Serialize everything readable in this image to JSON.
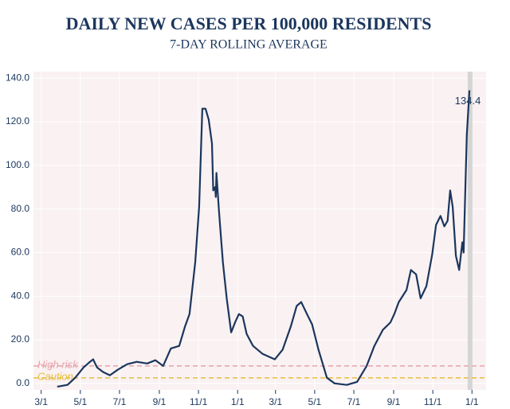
{
  "chart_data": {
    "type": "line",
    "title": "DAILY NEW CASES PER 100,000 RESIDENTS",
    "subtitle": "7-DAY ROLLING AVERAGE",
    "color": "#1b365d",
    "grid": true,
    "x": [
      25,
      41,
      53,
      66,
      76,
      81,
      87,
      97,
      107,
      119,
      134,
      149,
      165,
      178,
      190,
      202,
      215,
      224,
      231,
      240,
      246,
      251,
      256,
      261,
      266,
      268,
      271,
      272,
      273,
      277,
      283,
      289,
      296,
      302,
      308,
      314,
      320,
      330,
      345,
      364,
      376,
      389,
      398,
      405,
      414,
      422,
      432,
      445,
      457,
      476,
      492,
      507,
      519,
      532,
      544,
      550,
      557,
      569,
      576,
      584,
      591,
      600,
      609,
      615,
      622,
      628,
      633,
      637,
      641,
      646,
      651,
      656,
      658,
      663,
      667
    ],
    "values": [
      -1.5,
      -0.7,
      2.6,
      7.3,
      9.9,
      11,
      7.3,
      5.1,
      3.7,
      6.2,
      8.8,
      9.9,
      9.1,
      10.6,
      8,
      16,
      17.2,
      26,
      31.8,
      55.6,
      81,
      126,
      126,
      121,
      110,
      88.5,
      90,
      85.5,
      96.5,
      79,
      55.6,
      39,
      23.4,
      28,
      31.8,
      30.7,
      22.7,
      17.2,
      13.5,
      11,
      15.4,
      26.3,
      35.5,
      37.3,
      31.8,
      27,
      15.4,
      2.6,
      0,
      -0.7,
      0.7,
      8,
      17.2,
      24.5,
      28,
      31.8,
      37.3,
      42.8,
      52,
      50,
      39,
      44.6,
      59,
      72.7,
      76.8,
      72,
      74.6,
      88.5,
      81,
      58.5,
      52,
      64.7,
      60,
      114,
      134.4
    ],
    "xlim": [
      -12,
      693
    ],
    "ylim": [
      -3,
      143
    ],
    "xticks": [
      {
        "value": 0,
        "label": "3/1"
      },
      {
        "value": 61,
        "label": "5/1"
      },
      {
        "value": 122,
        "label": "7/1"
      },
      {
        "value": 184,
        "label": "9/1"
      },
      {
        "value": 245,
        "label": "11/1"
      },
      {
        "value": 306,
        "label": "1/1"
      },
      {
        "value": 365,
        "label": "3/1"
      },
      {
        "value": 426,
        "label": "5/1"
      },
      {
        "value": 487,
        "label": "7/1"
      },
      {
        "value": 549,
        "label": "9/1"
      },
      {
        "value": 610,
        "label": "11/1"
      },
      {
        "value": 671,
        "label": "1/1"
      }
    ],
    "yticks": [
      {
        "value": 0,
        "label": "0.0"
      },
      {
        "value": 20,
        "label": "20.0"
      },
      {
        "value": 40,
        "label": "40.0"
      },
      {
        "value": 60,
        "label": "60.0"
      },
      {
        "value": 80,
        "label": "80.0"
      },
      {
        "value": 100,
        "label": "100.0"
      },
      {
        "value": 120,
        "label": "120.0"
      },
      {
        "value": 140,
        "label": "140.0"
      }
    ],
    "highlight_x": 668,
    "thresholds": [
      {
        "label": "High risk",
        "value": 8,
        "color": "#e8a3ab"
      },
      {
        "label": "Caution",
        "value": 2.5,
        "color": "#e6bf3a"
      }
    ]
  }
}
